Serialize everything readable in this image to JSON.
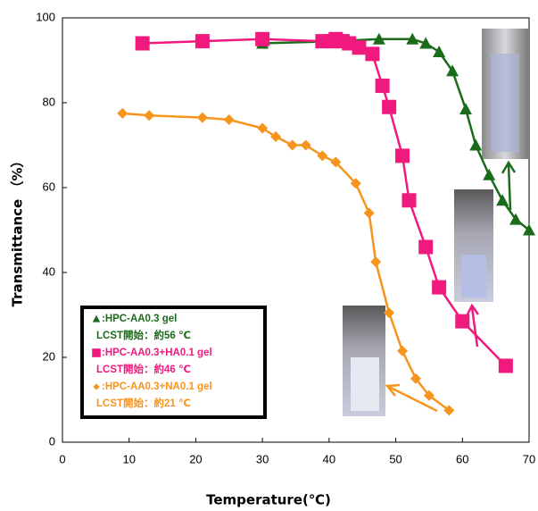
{
  "chart_data": {
    "type": "line",
    "x_label": "Temperature(℃)",
    "y_label": "Transmittance （%）",
    "xlim": [
      0,
      70
    ],
    "xticks": [
      0,
      10,
      20,
      30,
      40,
      50,
      60,
      70
    ],
    "ylim": [
      0,
      100
    ],
    "yticks": [
      0,
      20,
      40,
      60,
      80,
      100
    ],
    "series": [
      {
        "name": ":HPC-AA0.3 gel",
        "note": "LCST開始：約56 ℃",
        "color": "#1a6b1a",
        "marker": "triangle",
        "x": [
          30,
          41,
          47.5,
          52.5,
          54.5,
          56.5,
          58.5,
          60.5,
          62,
          64,
          66,
          68,
          70
        ],
        "values": [
          94,
          94.5,
          95,
          95,
          94,
          92,
          87.5,
          78.5,
          70,
          63,
          57,
          52.5,
          50
        ]
      },
      {
        "name": ":HPC-AA0.3+HA0.1 gel",
        "note": "LCST開始：約46 ℃",
        "color": "#f0197d",
        "marker": "square",
        "x": [
          12,
          21,
          30,
          39,
          40.5,
          41,
          42,
          43,
          44.5,
          46.5,
          48,
          49,
          51,
          52,
          54.5,
          56.5,
          60,
          66.5
        ],
        "values": [
          94,
          94.5,
          95,
          94.5,
          94.5,
          95,
          94.5,
          94,
          93,
          91.5,
          84,
          79,
          67.5,
          57,
          46,
          36.5,
          28.5,
          18
        ]
      },
      {
        "name": ":HPC-AA0.3+NA0.1 gel",
        "note": "LCST開始：約21 ℃",
        "color": "#f7941d",
        "marker": "diamond",
        "x": [
          9,
          13,
          21,
          25,
          30,
          32,
          34.5,
          36.5,
          39,
          41,
          44,
          46,
          47,
          49,
          51,
          53,
          55,
          58
        ],
        "values": [
          77.5,
          77,
          76.5,
          76,
          74,
          72,
          70,
          70,
          67.5,
          66,
          61,
          54,
          42.5,
          30.5,
          21.5,
          15,
          11,
          7.5
        ]
      }
    ]
  }
}
